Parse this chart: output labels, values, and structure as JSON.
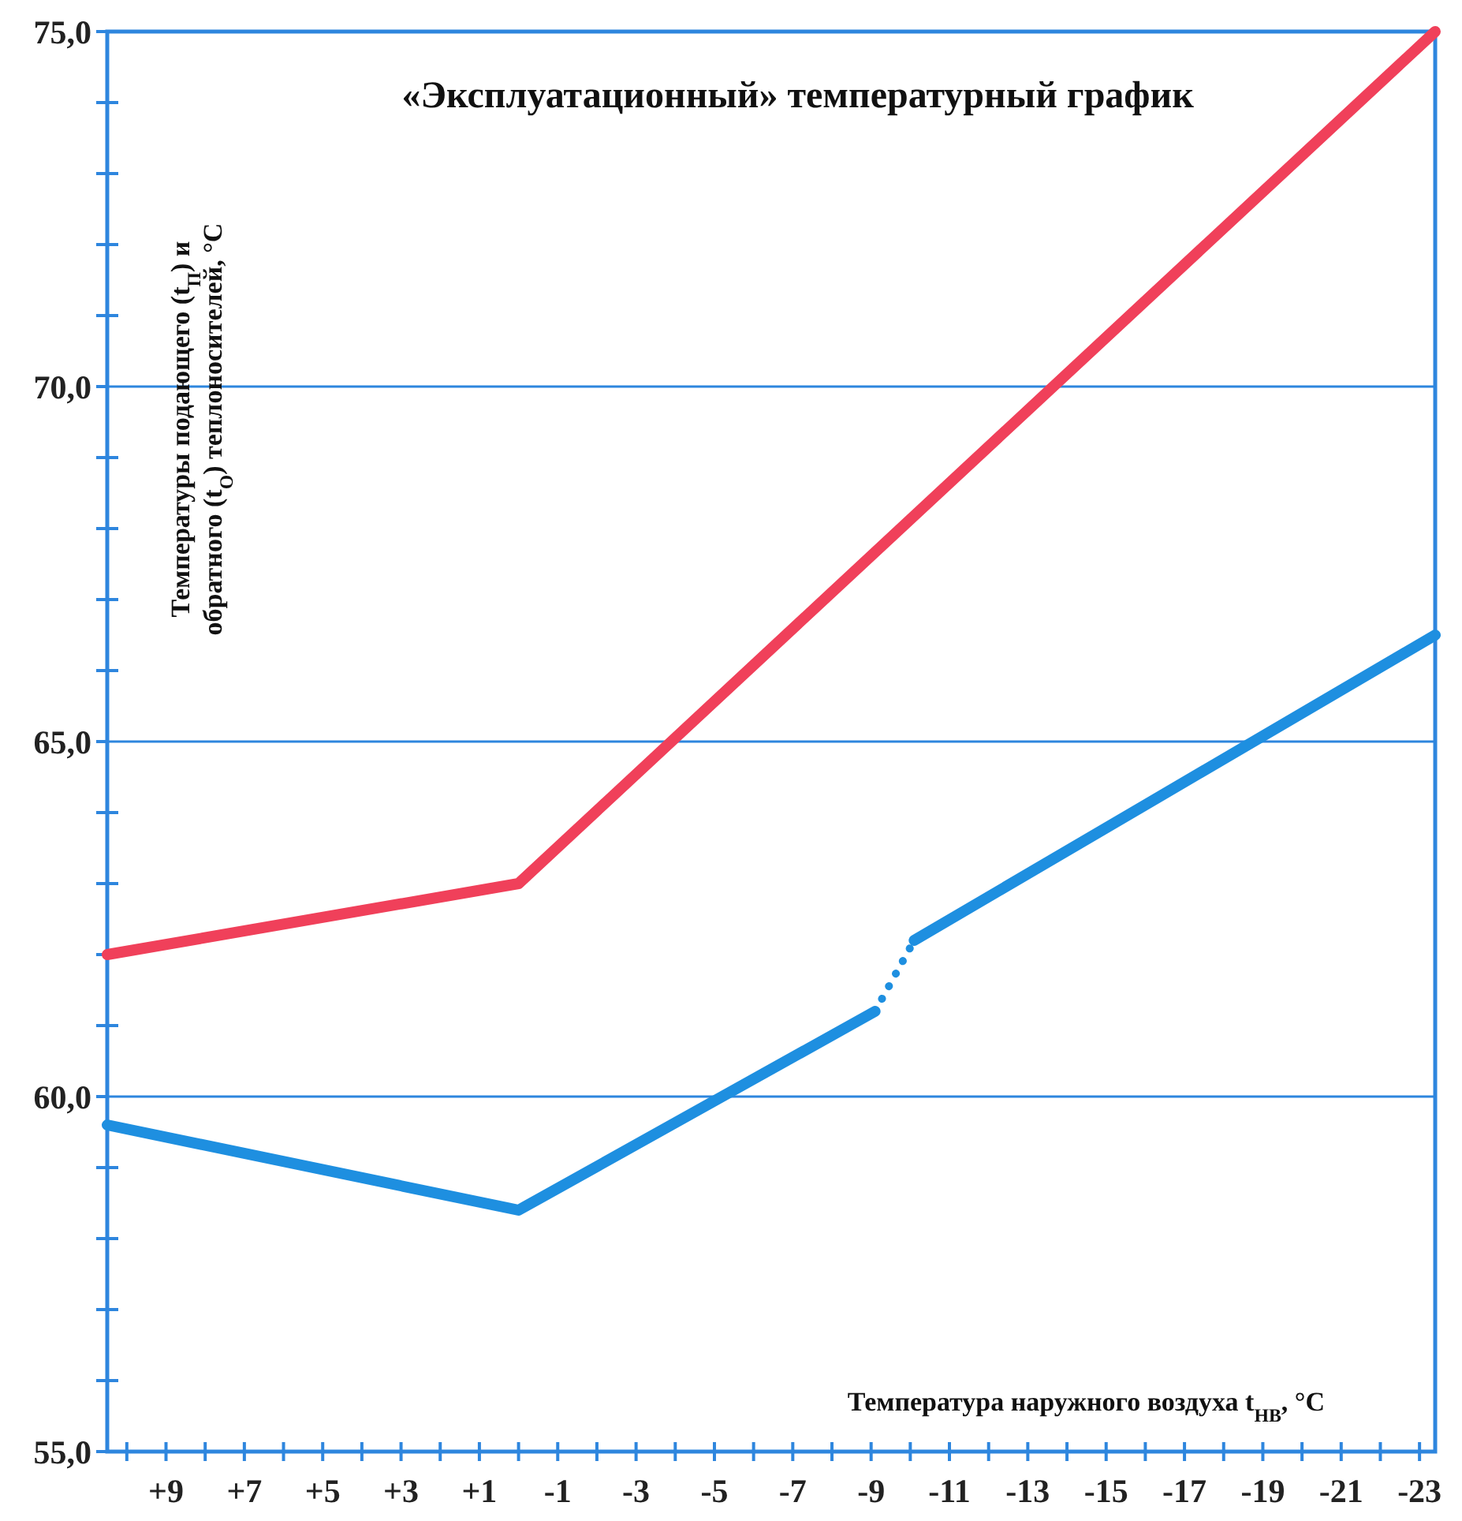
{
  "chart_data": {
    "type": "line",
    "title": "«Эксплуатационный» температурный график",
    "xlabel": "Температура наружного воздуха t$_{НВ}$, °С",
    "ylabel": "Температуры подающего (t$_{П}$) и обратного (t$_{О}$) теплоносителей, °С",
    "xlim": [
      10.5,
      -23.4
    ],
    "xticks": [
      {
        "value": 10,
        "label": null
      },
      {
        "value": 9,
        "label": "+9"
      },
      {
        "value": 8,
        "label": null
      },
      {
        "value": 7,
        "label": "+7"
      },
      {
        "value": 6,
        "label": null
      },
      {
        "value": 5,
        "label": "+5"
      },
      {
        "value": 4,
        "label": null
      },
      {
        "value": 3,
        "label": "+3"
      },
      {
        "value": 2,
        "label": null
      },
      {
        "value": 1,
        "label": "+1"
      },
      {
        "value": 0,
        "label": null
      },
      -1,
      {
        "value": -2,
        "label": null
      },
      -3,
      {
        "value": -4,
        "label": null
      },
      -5,
      {
        "value": -6,
        "label": null
      },
      -7,
      {
        "value": -8,
        "label": null
      },
      -9,
      {
        "value": -10,
        "label": null
      },
      -11,
      {
        "value": -12,
        "label": null
      },
      -13,
      {
        "value": -14,
        "label": null
      },
      -15,
      {
        "value": -16,
        "label": null
      },
      -17,
      {
        "value": -18,
        "label": null
      },
      -19,
      {
        "value": -20,
        "label": null
      },
      -21,
      {
        "value": -22,
        "label": null
      },
      -23
    ],
    "ylim": [
      55,
      75
    ],
    "yticks": [
      {
        "value": 55,
        "label": "55,0"
      },
      {
        "value": 56,
        "label": null
      },
      {
        "value": 57,
        "label": null
      },
      {
        "value": 58,
        "label": null
      },
      {
        "value": 59,
        "label": null
      },
      {
        "value": 60,
        "label": "60,0"
      },
      {
        "value": 61,
        "label": null
      },
      {
        "value": 62,
        "label": null
      },
      {
        "value": 63,
        "label": null
      },
      {
        "value": 64,
        "label": null
      },
      {
        "value": 65,
        "label": "65,0"
      },
      {
        "value": 66,
        "label": null
      },
      {
        "value": 67,
        "label": null
      },
      {
        "value": 68,
        "label": null
      },
      {
        "value": 69,
        "label": null
      },
      {
        "value": 70,
        "label": "70,0"
      },
      {
        "value": 71,
        "label": null
      },
      {
        "value": 72,
        "label": null
      },
      {
        "value": 73,
        "label": null
      },
      {
        "value": 74,
        "label": null
      },
      {
        "value": 75,
        "label": "75,0"
      }
    ],
    "grid": "y",
    "marker": "none",
    "series": [
      {
        "color": "#f0405a",
        "x": [
          10.5,
          0,
          -23.4
        ],
        "values": [
          62.0,
          63.0,
          75.0
        ]
      },
      {
        "color": "#1e8fe0",
        "x": [
          10.5,
          0,
          -9.1
        ],
        "values": [
          59.6,
          58.4,
          61.2
        ]
      },
      {
        "color": "#1e8fe0",
        "line_style": "dotted",
        "x": [
          -9.1,
          -10.1
        ],
        "values": [
          61.2,
          62.2
        ]
      },
      {
        "color": "#1e8fe0",
        "x": [
          -10.1,
          -23.4
        ],
        "values": [
          62.2,
          66.5
        ]
      }
    ]
  }
}
